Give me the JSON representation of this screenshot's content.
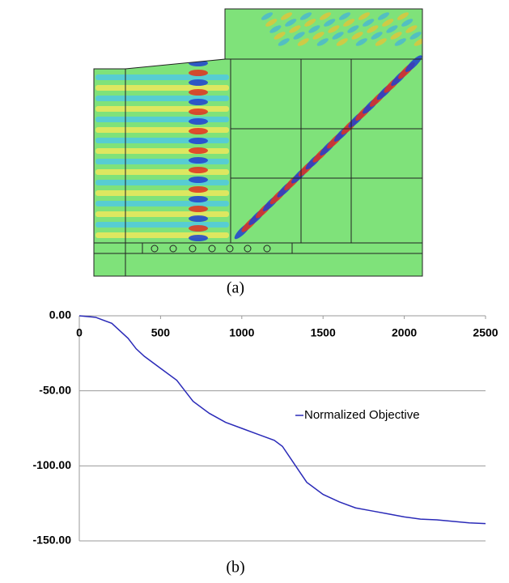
{
  "figure": {
    "panel_a_label": "(a)",
    "panel_b_label": "(b)"
  },
  "chart_data": {
    "type": "line",
    "x": [
      0,
      100,
      200,
      300,
      350,
      400,
      500,
      600,
      650,
      700,
      800,
      900,
      1000,
      1100,
      1200,
      1250,
      1300,
      1350,
      1400,
      1500,
      1600,
      1700,
      1800,
      1900,
      2000,
      2100,
      2200,
      2300,
      2400,
      2500
    ],
    "series": [
      {
        "name": "Normalized Objective",
        "color": "#2a2ab8",
        "values": [
          0,
          -1,
          -5,
          -15,
          -22,
          -27,
          -35,
          -43,
          -50,
          -57,
          -65,
          -71,
          -75,
          -79,
          -83,
          -87,
          -95,
          -103,
          -111,
          -119,
          -124,
          -128,
          -130,
          -132,
          -134,
          -135.5,
          -136,
          -137,
          -138,
          -138.5
        ]
      }
    ],
    "xlim": [
      0,
      2500
    ],
    "xticks": [
      0,
      500,
      1000,
      1500,
      2000,
      2500
    ],
    "ylim": [
      -150,
      0
    ],
    "yticks": [
      {
        "value": 0,
        "label": "0.00"
      },
      {
        "value": -50,
        "label": "-50.00"
      },
      {
        "value": -100,
        "label": "-100.00"
      },
      {
        "value": -150,
        "label": "-150.00"
      }
    ],
    "grid": true,
    "legend": "right"
  }
}
